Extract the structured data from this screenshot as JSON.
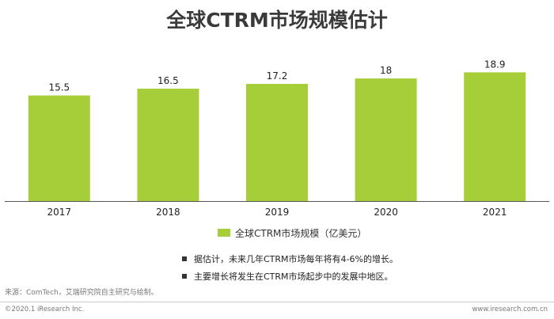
{
  "title": "全球CTRM市场规模估计",
  "legend_label": "全球CTRM市场规模（亿美元）",
  "notes": [
    "据估计，未来几年CTRM市场每年将有4-6%的增长。",
    "主要增长将发生在CTRM市场起步中的发展中地区。"
  ],
  "source": "来源：ComTech，艾瑞研究院自主研究与绘制。",
  "footer": {
    "left": "©2020.1 iResearch Inc.",
    "right": "www.iresearch.com.cn"
  },
  "colors": {
    "bar": "#a6ce39",
    "axis": "#555555"
  },
  "chart_data": {
    "type": "bar",
    "categories": [
      "2017",
      "2018",
      "2019",
      "2020",
      "2021"
    ],
    "series": [
      {
        "name": "全球CTRM市场规模（亿美元）",
        "values": [
          15.5,
          16.5,
          17.2,
          18,
          18.9
        ]
      }
    ],
    "value_labels": [
      "15.5",
      "16.5",
      "17.2",
      "18",
      "18.9"
    ],
    "ylim": [
      0,
      21.5
    ],
    "grid": false,
    "legend_position": "bottom"
  }
}
